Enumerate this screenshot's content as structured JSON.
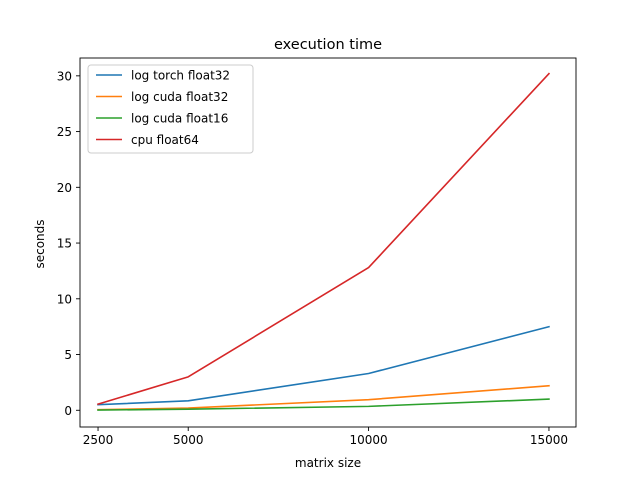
{
  "chart_data": {
    "type": "line",
    "title": "execution time",
    "xlabel": "matrix size",
    "ylabel": "seconds",
    "x": [
      2500,
      5000,
      10000,
      15000
    ],
    "x_ticks": [
      2500,
      5000,
      10000,
      15000
    ],
    "x_tick_labels": [
      "2500",
      "5000",
      "10000",
      "15000"
    ],
    "y_ticks": [
      0,
      5,
      10,
      15,
      20,
      25,
      30
    ],
    "y_tick_labels": [
      "0",
      "5",
      "10",
      "15",
      "20",
      "25",
      "30"
    ],
    "xlim": [
      2000,
      15750
    ],
    "ylim": [
      -1.5,
      31.6
    ],
    "grid": false,
    "legend_position": "top-left",
    "series": [
      {
        "name": "log torch float32",
        "color": "#1f77b4",
        "values": [
          0.5,
          0.85,
          3.3,
          7.5
        ]
      },
      {
        "name": "log cuda float32",
        "color": "#ff7f0e",
        "values": [
          0.05,
          0.2,
          0.95,
          2.2
        ]
      },
      {
        "name": "log cuda float16",
        "color": "#2ca02c",
        "values": [
          0.02,
          0.1,
          0.35,
          1.0
        ]
      },
      {
        "name": "cpu float64",
        "color": "#d62728",
        "values": [
          0.55,
          3.0,
          12.8,
          30.2
        ]
      }
    ]
  }
}
